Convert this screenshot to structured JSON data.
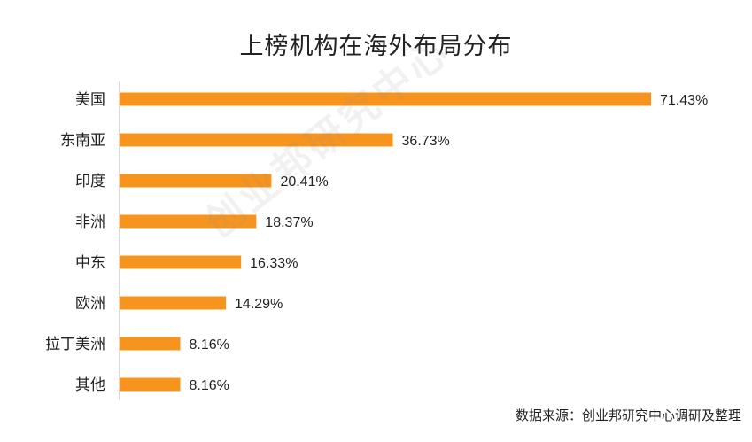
{
  "chart_data": {
    "type": "bar",
    "orientation": "horizontal",
    "title": "上榜机构在海外布局分布",
    "categories": [
      "美国",
      "东南亚",
      "印度",
      "非洲",
      "中东",
      "欧洲",
      "拉丁美洲",
      "其他"
    ],
    "values": [
      71.43,
      36.73,
      20.41,
      18.37,
      16.33,
      14.29,
      8.16,
      8.16
    ],
    "value_labels": [
      "71.43%",
      "36.73%",
      "20.41%",
      "18.37%",
      "16.33%",
      "14.29%",
      "8.16%",
      "8.16%"
    ],
    "xlim": [
      0,
      71.43
    ],
    "grid": false,
    "legend": "none",
    "bar_color": "#F7941D"
  },
  "watermark": "创业邦研究中心",
  "source": "数据来源：创业邦研究中心调研及整理"
}
